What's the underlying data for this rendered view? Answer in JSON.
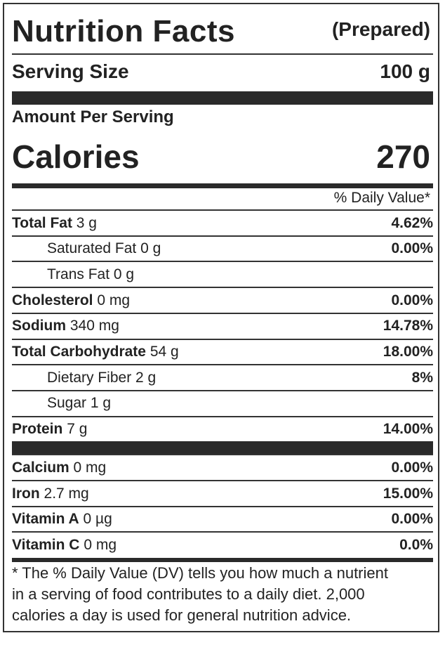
{
  "header": {
    "title": "Nutrition Facts",
    "subtitle": "(Prepared)"
  },
  "serving_size": {
    "label": "Serving Size",
    "value": "100 g"
  },
  "amount_per_serving": "Amount Per Serving",
  "calories": {
    "label": "Calories",
    "value": "270"
  },
  "daily_value_header": "% Daily Value*",
  "nutrients": [
    {
      "name": "Total Fat",
      "amount": "3 g",
      "dv": "4.62%",
      "sub_items": [
        {
          "name": "Saturated Fat",
          "amount": "0 g",
          "dv": "0.00%"
        },
        {
          "name": "Trans Fat",
          "amount": "0 g"
        }
      ]
    },
    {
      "name": "Cholesterol",
      "amount": "0 mg",
      "dv": "0.00%"
    },
    {
      "name": "Sodium",
      "amount": "340 mg",
      "dv": "14.78%"
    },
    {
      "name": "Total Carbohydrate",
      "amount": "54 g",
      "dv": "18.00%",
      "sub_items": [
        {
          "name": "Dietary Fiber",
          "amount": "2 g",
          "dv": "8%"
        },
        {
          "name": "Sugar",
          "amount": "1 g"
        }
      ]
    },
    {
      "name": "Protein",
      "amount": "7 g",
      "dv": "14.00%"
    }
  ],
  "minerals": [
    {
      "name": "Calcium",
      "amount": "0 mg",
      "dv": "0.00%"
    },
    {
      "name": "Iron",
      "amount": "2.7 mg",
      "dv": "15.00%"
    },
    {
      "name": "Vitamin A",
      "amount": "0 µg",
      "dv": "0.00%"
    },
    {
      "name": "Vitamin C",
      "amount": "0 mg",
      "dv": "0.0%"
    }
  ],
  "footnote": [
    "* The % Daily Value (DV) tells you how much a nutrient",
    "in a serving of food contributes to a daily diet. 2,000",
    "calories a day is used for general nutrition advice."
  ]
}
